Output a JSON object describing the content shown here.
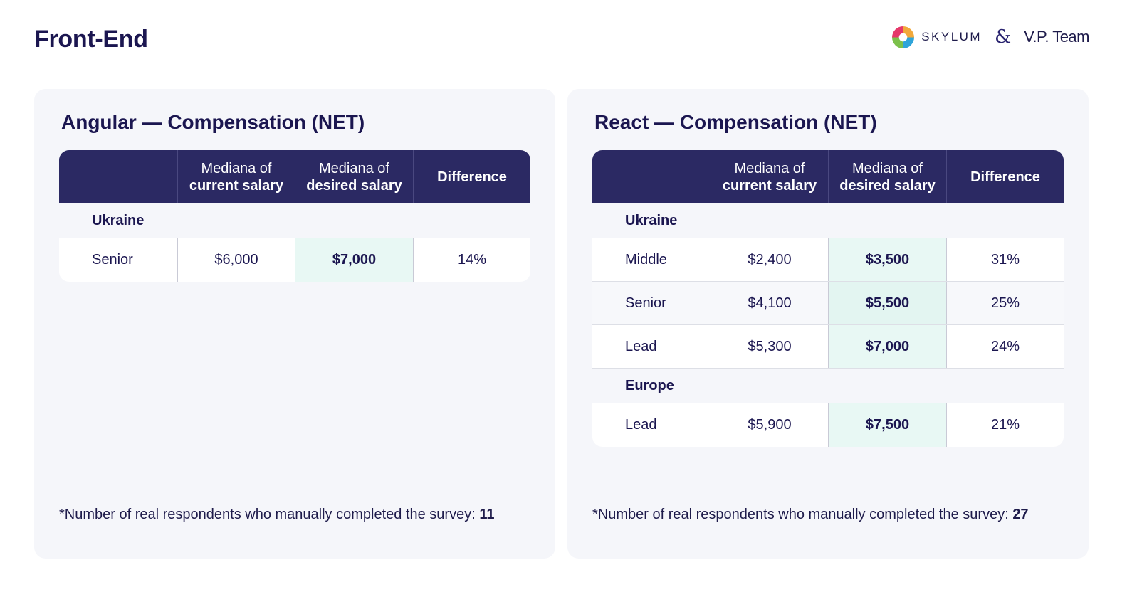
{
  "page_title": "Front-End",
  "brands": {
    "skylum": "SKYLUM",
    "ampersand": "&",
    "vpteam": "V.P. Team"
  },
  "headers": {
    "current_line1": "Mediana of",
    "current_line2": "current salary",
    "desired_line1": "Mediana of",
    "desired_line2": "desired salary",
    "difference": "Difference"
  },
  "angular": {
    "title": "Angular — Compensation (NET)",
    "groups": [
      {
        "name": "Ukraine",
        "rows": [
          {
            "level": "Senior",
            "current": "$6,000",
            "desired": "$7,000",
            "difference": "14%"
          }
        ]
      }
    ],
    "footnote_text": "*Number of real respondents who manually completed the survey:",
    "footnote_count": "11"
  },
  "react": {
    "title": "React — Compensation (NET)",
    "groups": [
      {
        "name": "Ukraine",
        "rows": [
          {
            "level": "Middle",
            "current": "$2,400",
            "desired": "$3,500",
            "difference": "31%"
          },
          {
            "level": "Senior",
            "current": "$4,100",
            "desired": "$5,500",
            "difference": "25%"
          },
          {
            "level": "Lead",
            "current": "$5,300",
            "desired": "$7,000",
            "difference": "24%"
          }
        ]
      },
      {
        "name": "Europe",
        "rows": [
          {
            "level": "Lead",
            "current": "$5,900",
            "desired": "$7,500",
            "difference": "21%"
          }
        ]
      }
    ],
    "footnote_text": "*Number of real respondents who manually completed the survey:",
    "footnote_count": "27"
  }
}
